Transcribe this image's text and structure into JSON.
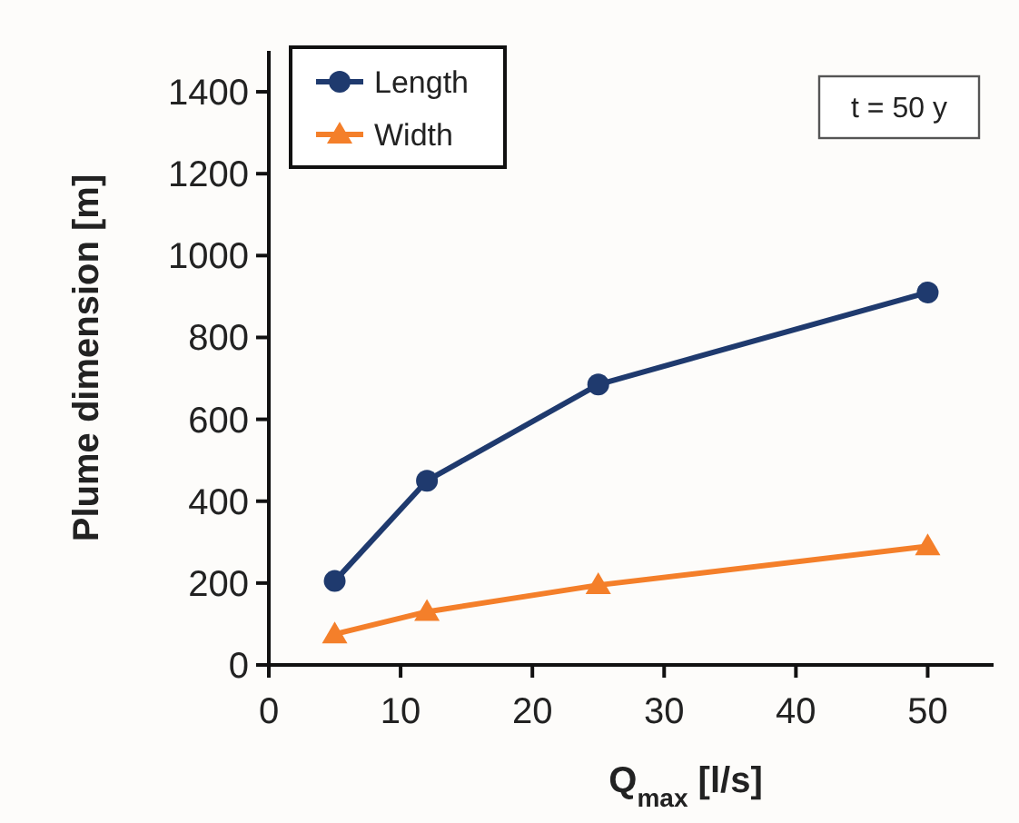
{
  "chart_data": {
    "type": "line",
    "xlabel": "Q$_{max}$ [l/s]",
    "ylabel": "Plume dimension [m]",
    "x": [
      5,
      12,
      25,
      50
    ],
    "series": [
      {
        "name": "Length",
        "color": "#1f3a6e",
        "values": [
          205,
          450,
          685,
          910
        ],
        "marker": "circle"
      },
      {
        "name": "Width",
        "color": "#f47f2a",
        "values": [
          75,
          130,
          195,
          290
        ],
        "marker": "triangle"
      }
    ],
    "xlim": [
      0,
      55
    ],
    "xticks": [
      0,
      10,
      20,
      30,
      40,
      50
    ],
    "ylim": [
      0,
      1500
    ],
    "yticks": [
      0,
      200,
      400,
      600,
      800,
      1000,
      1200,
      1400
    ],
    "legend": "top left",
    "grid": false,
    "annotations": [
      "t = 50 y"
    ]
  }
}
